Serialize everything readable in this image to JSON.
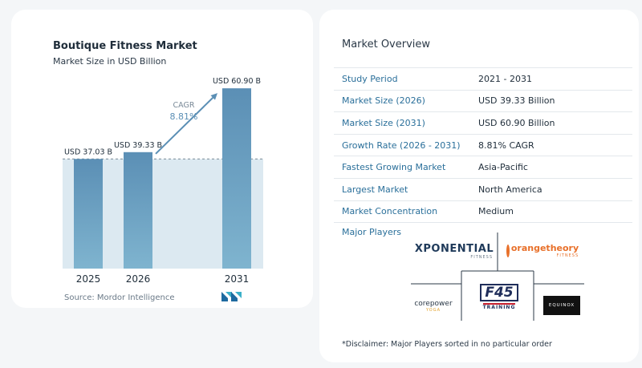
{
  "chart_data": {
    "type": "bar",
    "title": "Boutique Fitness Market",
    "subtitle": "Market Size in USD Billion",
    "categories": [
      "2025",
      "2026",
      "2031"
    ],
    "values": [
      37.03,
      39.33,
      60.9
    ],
    "value_labels": [
      "USD 37.03 B",
      "USD 39.33 B",
      "USD 60.90 B"
    ],
    "cagr_label": "CAGR",
    "cagr_value": "8.81%",
    "ylim": [
      0,
      65
    ],
    "grid": false,
    "bar_color": "#5b8fb5",
    "bar_color_light": "#7fb4cf",
    "band_color": "#dce9f1"
  },
  "source": "Source:  Mordor Intelligence",
  "overview": {
    "title": "Market Overview",
    "rows": [
      {
        "label": "Study Period",
        "value": "2021 - 2031"
      },
      {
        "label": "Market Size (2026)",
        "value": "USD 39.33 Billion"
      },
      {
        "label": "Market Size (2031)",
        "value": "USD 60.90 Billion"
      },
      {
        "label": "Growth Rate (2026 - 2031)",
        "value": "8.81% CAGR"
      },
      {
        "label": "Fastest Growing Market",
        "value": "Asia-Pacific"
      },
      {
        "label": "Largest Market",
        "value": "North America"
      },
      {
        "label": "Market Concentration",
        "value": "Medium"
      }
    ]
  },
  "players": {
    "title": "Major Players",
    "logos": {
      "xponential": "XPONENTIAL",
      "xponential_sub": "FITNESS",
      "orangetheory": "orangetheory",
      "orangetheory_sub": "FITNESS",
      "corepower": "corepower",
      "corepower_sub": "YOGA",
      "f45": "F45",
      "f45_sub": "TRAINING",
      "equinox": "EQUINOX"
    }
  },
  "disclaimer": "*Disclaimer: Major Players sorted in no particular order"
}
